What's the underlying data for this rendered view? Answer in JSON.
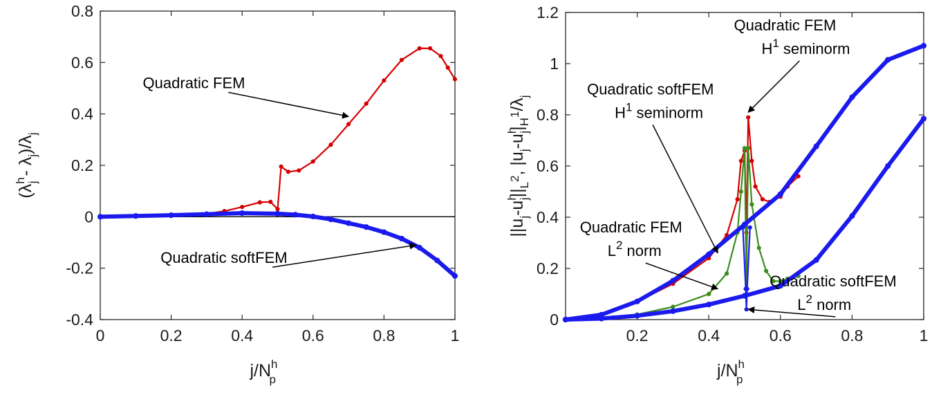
{
  "colors": {
    "red": "#d40000",
    "green": "#3c8c1e",
    "blue": "#1a1aee",
    "axis": "#262626",
    "zero_line": "#000000"
  },
  "chart_data": [
    {
      "type": "line",
      "xlabel": {
        "main": "j/N",
        "sup": "h",
        "sub": "p"
      },
      "ylabel": {
        "open": "(λ",
        "sup1": "h",
        "sub1": "j",
        "minus": " - λ",
        "sub2": "j",
        "close": ")/λ",
        "sub3": "j"
      },
      "xlim": [
        0,
        1
      ],
      "ylim": [
        -0.4,
        0.8
      ],
      "xticks": [
        0,
        0.2,
        0.4,
        0.6,
        0.8,
        1
      ],
      "xtick_labels": [
        "0",
        "0.2",
        "0.4",
        "0.6",
        "0.8",
        "1"
      ],
      "yticks": [
        -0.4,
        -0.2,
        0,
        0.2,
        0.4,
        0.6,
        0.8
      ],
      "ytick_labels": [
        "-0.4",
        "-0.2",
        "0",
        "0.2",
        "0.4",
        "0.6",
        "0.8"
      ],
      "reference_line_y": 0,
      "series": [
        {
          "id": "p1-fem",
          "color": "red",
          "x": [
            0,
            0.1,
            0.2,
            0.3,
            0.35,
            0.4,
            0.45,
            0.48,
            0.5,
            0.51,
            0.53,
            0.56,
            0.6,
            0.65,
            0.7,
            0.75,
            0.8,
            0.85,
            0.9,
            0.93,
            0.96,
            0.98,
            1.0
          ],
          "y": [
            0,
            0.001,
            0.004,
            0.012,
            0.022,
            0.038,
            0.056,
            0.058,
            0.03,
            0.195,
            0.175,
            0.18,
            0.215,
            0.28,
            0.36,
            0.44,
            0.53,
            0.61,
            0.655,
            0.655,
            0.625,
            0.58,
            0.535
          ]
        },
        {
          "id": "p1-softfem",
          "color": "blue",
          "x": [
            0,
            0.1,
            0.2,
            0.3,
            0.4,
            0.5,
            0.55,
            0.6,
            0.65,
            0.7,
            0.75,
            0.8,
            0.85,
            0.9,
            0.95,
            1.0
          ],
          "y": [
            0,
            0.003,
            0.006,
            0.01,
            0.014,
            0.012,
            0.008,
            0.001,
            -0.01,
            -0.025,
            -0.04,
            -0.06,
            -0.085,
            -0.12,
            -0.17,
            -0.23
          ]
        }
      ],
      "annotations": [
        {
          "text": "Quadratic FEM",
          "x": 0.12,
          "y": 0.5,
          "ax": 0.7,
          "ay": 0.39
        },
        {
          "text": "Quadratic softFEM",
          "x": 0.17,
          "y": -0.18,
          "ax": 0.89,
          "ay": -0.11
        }
      ]
    },
    {
      "type": "line",
      "xlabel": {
        "main": "j/N",
        "sup": "h",
        "sub": "p"
      },
      "ylabel": {
        "t1": "||u",
        "s1": "j",
        "t2": "-u",
        "p2": "h",
        "s2": "j",
        "t3": "||",
        "s3": "L",
        "p3": "2",
        "t4": ", |u",
        "s4": "j",
        "t5": "-u",
        "p5": "h",
        "s5": "j",
        "t6": "|",
        "s6": "H",
        "p6": "1",
        "t7": "/λ",
        "s7": "j"
      },
      "xlim": [
        0,
        1
      ],
      "ylim": [
        0,
        1.2
      ],
      "xticks": [
        0.2,
        0.4,
        0.6,
        0.8,
        1
      ],
      "xtick_labels": [
        "0.2",
        "0.4",
        "0.6",
        "0.8",
        "1"
      ],
      "yticks": [
        0,
        0.2,
        0.4,
        0.6,
        0.8,
        1,
        1.2
      ],
      "ytick_labels": [
        "0",
        "0.2",
        "0.4",
        "0.6",
        "0.8",
        "1",
        "1.2"
      ],
      "series": [
        {
          "id": "p2-fem-h1",
          "color": "red",
          "x": [
            0,
            0.1,
            0.2,
            0.3,
            0.4,
            0.45,
            0.48,
            0.49,
            0.5,
            0.505,
            0.51,
            0.52,
            0.53,
            0.55,
            0.57,
            0.6,
            0.62,
            0.65
          ],
          "y": [
            0,
            0.02,
            0.07,
            0.14,
            0.24,
            0.33,
            0.47,
            0.62,
            0.66,
            0.34,
            0.79,
            0.62,
            0.52,
            0.47,
            0.46,
            0.48,
            0.52,
            0.56
          ]
        },
        {
          "id": "p2-fem-l2",
          "color": "green",
          "x": [
            0,
            0.1,
            0.2,
            0.3,
            0.4,
            0.45,
            0.48,
            0.49,
            0.5,
            0.505,
            0.51,
            0.52,
            0.54,
            0.56,
            0.58,
            0.6,
            0.62,
            0.65
          ],
          "y": [
            0,
            0.005,
            0.02,
            0.05,
            0.1,
            0.18,
            0.34,
            0.5,
            0.67,
            0.12,
            0.67,
            0.45,
            0.28,
            0.19,
            0.15,
            0.15,
            0.16,
            0.17
          ]
        },
        {
          "id": "p2-softfem-h1",
          "color": "blue",
          "x": [
            0,
            0.1,
            0.2,
            0.3,
            0.4,
            0.5,
            0.6,
            0.7,
            0.8,
            0.9,
            1.0
          ],
          "y": [
            0,
            0.019,
            0.071,
            0.152,
            0.255,
            0.372,
            0.49,
            0.677,
            0.869,
            1.015,
            1.07
          ]
        },
        {
          "id": "p2-softfem-l2",
          "color": "blue",
          "x": [
            0,
            0.1,
            0.2,
            0.3,
            0.4,
            0.5,
            0.6,
            0.7,
            0.8,
            0.9,
            1.0
          ],
          "y": [
            0,
            0.004,
            0.015,
            0.033,
            0.059,
            0.093,
            0.132,
            0.233,
            0.405,
            0.6,
            0.785
          ]
        },
        {
          "id": "p2-softfem-spike",
          "color": "blue",
          "x": [
            0.495,
            0.503,
            0.505,
            0.507,
            0.515
          ],
          "y": [
            0.36,
            0.12,
            0.04,
            0.12,
            0.36
          ]
        }
      ],
      "annotations": [
        {
          "lines": [
            {
              "text": "Quadratic FEM"
            },
            {
              "text": "H",
              "sup": "1",
              "rest": " seminorm"
            }
          ],
          "x": 0.47,
          "y": 1.13,
          "ax": 0.51,
          "ay": 0.81
        },
        {
          "lines": [
            {
              "text": "Quadratic softFEM"
            },
            {
              "text": "H",
              "sup": "1",
              "rest": " seminorm"
            }
          ],
          "x": 0.06,
          "y": 0.88,
          "ax": 0.425,
          "ay": 0.26
        },
        {
          "lines": [
            {
              "text": "Quadratic FEM"
            },
            {
              "text": "L",
              "sup": "2",
              "rest": " norm"
            }
          ],
          "x": 0.04,
          "y": 0.34,
          "ax": 0.425,
          "ay": 0.12
        },
        {
          "lines": [
            {
              "text": "Quadratic softFEM"
            },
            {
              "text": "L",
              "sup": "2",
              "rest": " norm"
            }
          ],
          "x": 0.57,
          "y": 0.13,
          "ax": 0.51,
          "ay": 0.04
        }
      ]
    }
  ]
}
